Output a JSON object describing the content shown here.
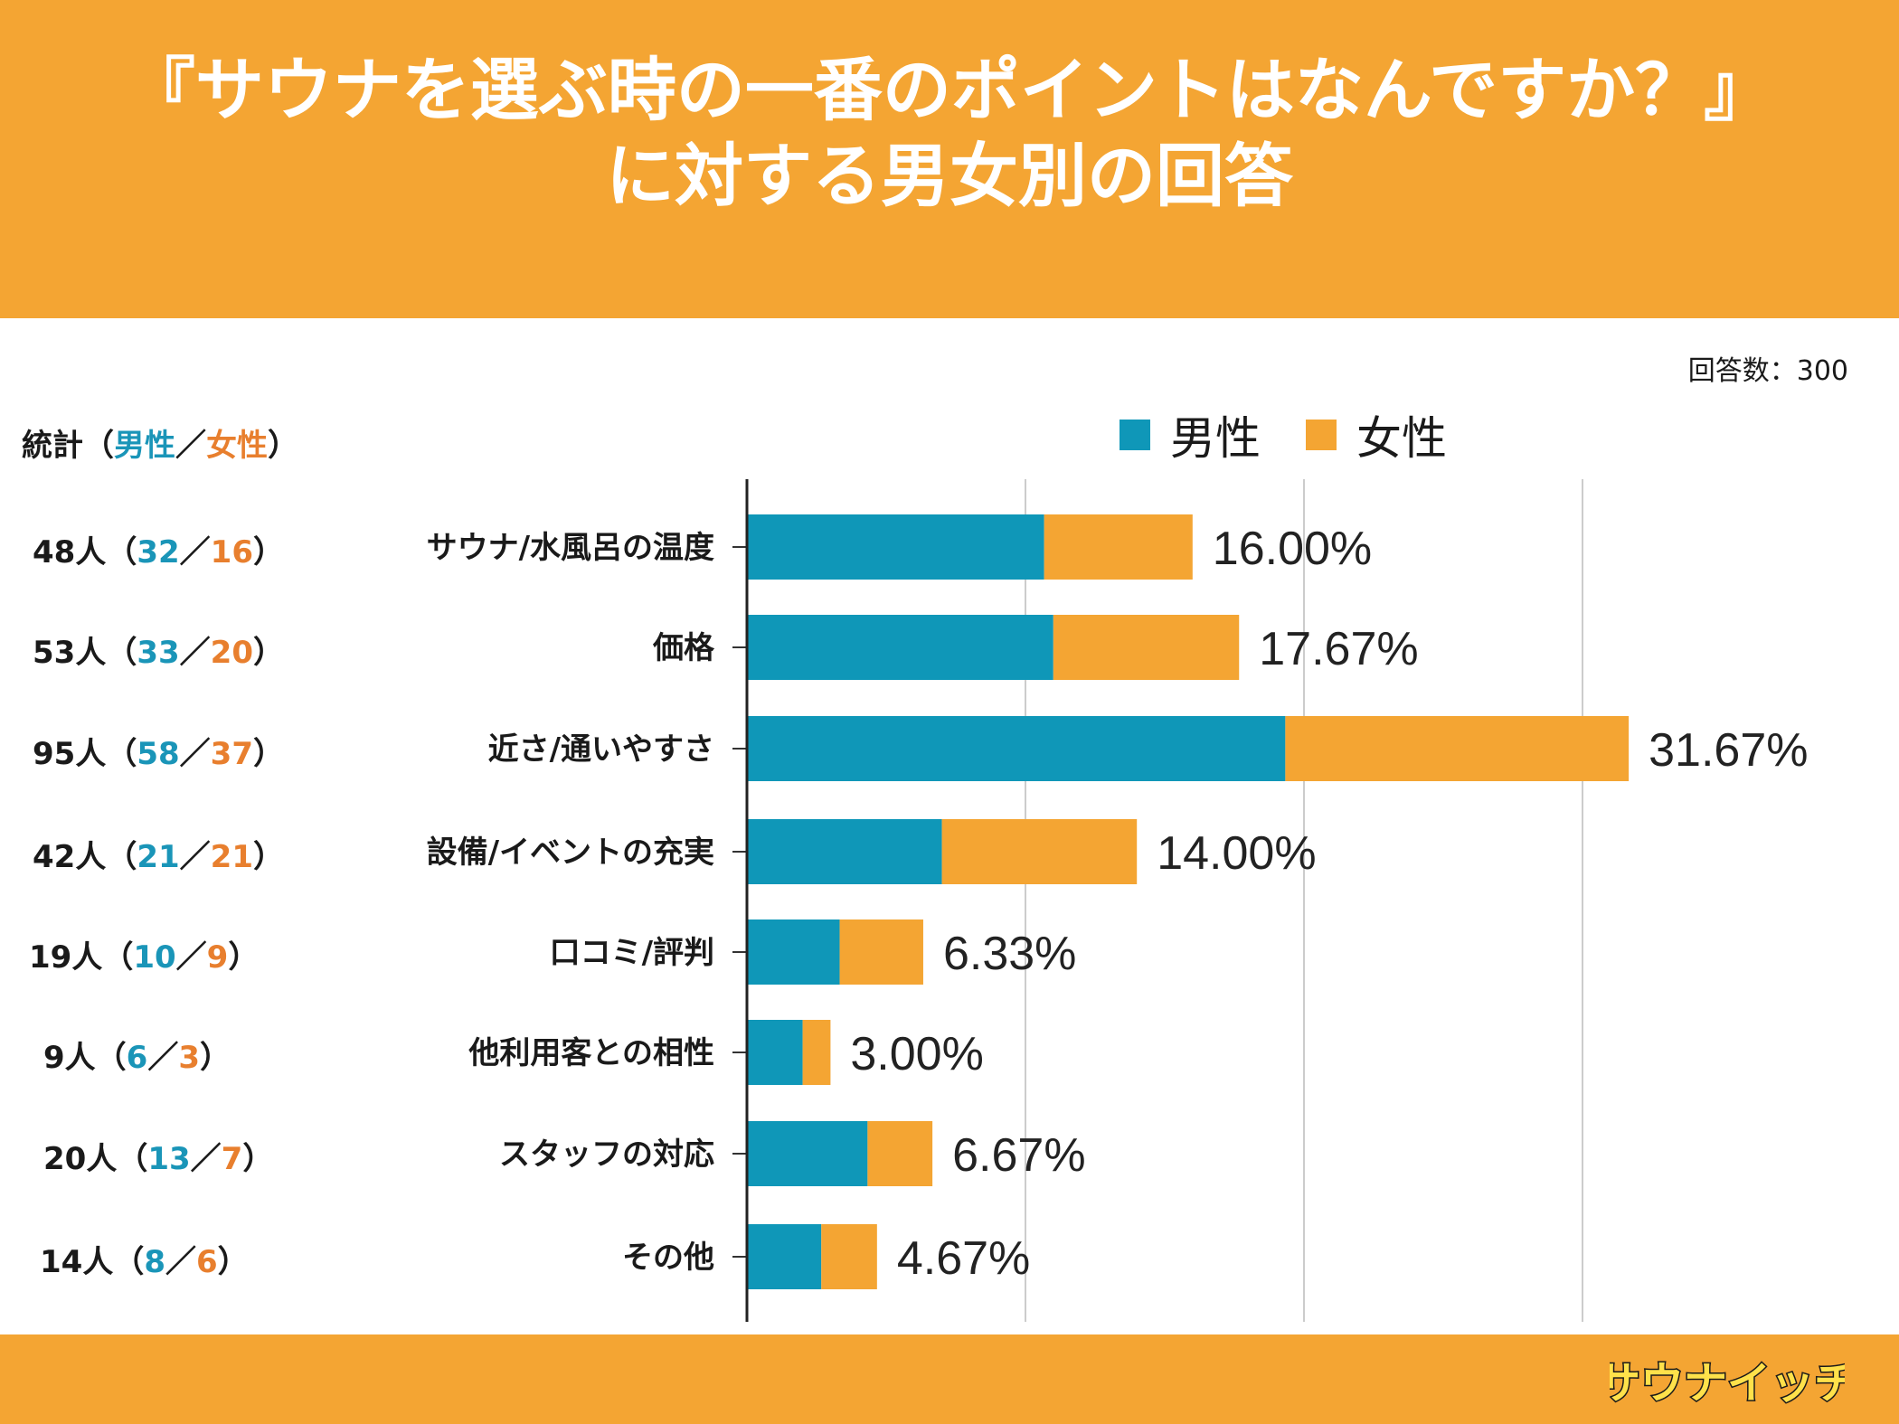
{
  "header": {
    "title_line1": "『サウナを選ぶ時の一番のポイントはなんですか？』",
    "title_line2": "に対する男女別の回答"
  },
  "total_label": "回答数：300",
  "stats_header": {
    "prefix": "統計（",
    "male": "男性",
    "sep": "／",
    "female": "女性",
    "suffix": "）"
  },
  "stats": [
    {
      "total": "48人",
      "male": "32",
      "female": "16"
    },
    {
      "total": "53人",
      "male": "33",
      "female": "20"
    },
    {
      "total": "95人",
      "male": "58",
      "female": "37"
    },
    {
      "total": "42人",
      "male": "21",
      "female": "21"
    },
    {
      "total": "19人",
      "male": "10",
      "female": "9"
    },
    {
      "total": "9人",
      "male": "6",
      "female": "3"
    },
    {
      "total": "20人",
      "male": "13",
      "female": "7"
    },
    {
      "total": "14人",
      "male": "8",
      "female": "6"
    }
  ],
  "colors": {
    "male": "#0f97b8",
    "female": "#f4a533",
    "header": "#f4a533"
  },
  "chart_data": {
    "type": "bar",
    "orientation": "horizontal",
    "stacked": true,
    "categories": [
      "サウナ/水風呂の温度",
      "価格",
      "近さ/通いやすさ",
      "設備/イベントの充実",
      "口コミ/評判",
      "他利用客との相性",
      "スタッフの対応",
      "その他"
    ],
    "series": [
      {
        "name": "男性",
        "values": [
          10.67,
          11.0,
          19.33,
          7.0,
          3.33,
          2.0,
          4.33,
          2.67
        ]
      },
      {
        "name": "女性",
        "values": [
          5.33,
          6.67,
          12.33,
          7.0,
          3.0,
          1.0,
          2.33,
          2.0
        ]
      }
    ],
    "data_labels": [
      "16.00%",
      "17.67%",
      "31.67%",
      "14.00%",
      "6.33%",
      "3.00%",
      "6.67%",
      "4.67%"
    ],
    "xlim": [
      0,
      40
    ],
    "gridlines": [
      10,
      20,
      30
    ],
    "legend": [
      "男性",
      "女性"
    ],
    "legend_position": "top-right"
  },
  "logo": {
    "text": "サウナイッチ"
  }
}
